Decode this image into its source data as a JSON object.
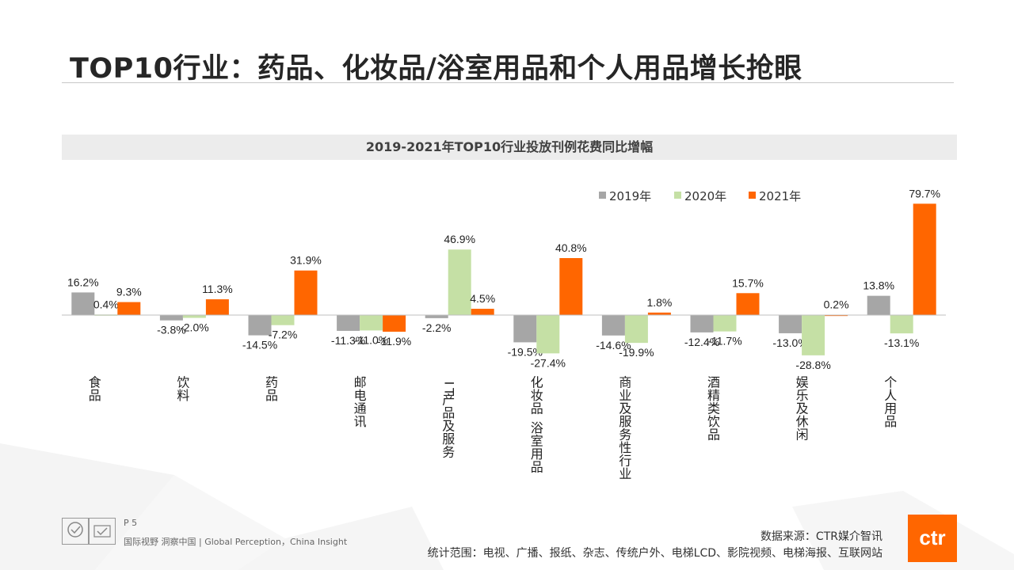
{
  "page": {
    "title": "TOP10行业：药品、化妆品/浴室用品和个人用品增长抢眼",
    "page_number": "P 5",
    "tagline": "国际视野  洞察中国 |  Global Perception，China Insight",
    "source": "数据来源：CTR媒介智讯",
    "scope": "统计范围：电视、广播、报纸、杂志、传统户外、电梯LCD、影院视频、电梯海报、互联网站",
    "logo_text": "ctr"
  },
  "colors": {
    "s2019": "#a6a6a6",
    "s2020": "#c5e0a5",
    "s2021": "#ff6600"
  },
  "chart_data": {
    "type": "bar",
    "title": "2019-2021年TOP10行业投放刊例花费同比增幅",
    "xlabel": "",
    "ylabel": "",
    "legend_position": "top-right",
    "grid": false,
    "ylim": [
      -35,
      85
    ],
    "categories": [
      "食品",
      "饮料",
      "药品",
      "邮电通讯",
      "IT产品及服务",
      "化妆品/浴室用品",
      "商业及服务性行业",
      "酒精类饮品",
      "娱乐及休闲",
      "个人用品"
    ],
    "category_labels": [
      "食品",
      "饮料",
      "药品",
      "邮电通讯",
      "IT产品及服务",
      "化妆品 浴室用品",
      "商业及服务性行业",
      "酒精类饮品",
      "娱乐及休闲",
      "个人用品"
    ],
    "series": [
      {
        "name": "2019年",
        "values": [
          16.2,
          -3.8,
          -14.5,
          -11.3,
          -2.2,
          -19.5,
          -14.6,
          -12.4,
          -13.0,
          13.8
        ]
      },
      {
        "name": "2020年",
        "values": [
          0.4,
          -2.0,
          -7.2,
          -11.0,
          46.9,
          -27.4,
          -19.9,
          -11.7,
          -28.8,
          -13.1
        ]
      },
      {
        "name": "2021年",
        "values": [
          9.3,
          11.3,
          31.9,
          -11.9,
          4.5,
          40.8,
          1.8,
          15.7,
          0.2,
          79.7
        ]
      }
    ]
  }
}
